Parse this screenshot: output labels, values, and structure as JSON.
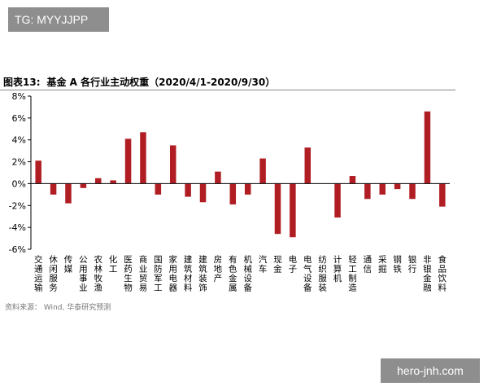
{
  "watermark_top": "TG: MYYJJPP",
  "watermark_bottom": "hero-jnh.com",
  "figure": {
    "number": "图表13:",
    "title": "基金 A 各行业主动权重（2020/4/1-2020/9/30）",
    "source": "资料来源： Wind, 华泰研究预测"
  },
  "chart_data": {
    "type": "bar",
    "title": "基金 A 各行业主动权重（2020/4/1-2020/9/30）",
    "xlabel": "",
    "ylabel": "",
    "ylim": [
      -6,
      8
    ],
    "yticks": [
      -6,
      -4,
      -2,
      0,
      2,
      4,
      6,
      8
    ],
    "ytick_labels": [
      "-6%",
      "-4%",
      "-2%",
      "0%",
      "2%",
      "4%",
      "6%",
      "8%"
    ],
    "grid": false,
    "bar_color": "#b01e24",
    "categories": [
      "交通运输",
      "休闲服务",
      "传媒",
      "公用事业",
      "农林牧渔",
      "化工",
      "医药生物",
      "商业贸易",
      "国防军工",
      "家用电器",
      "建筑材料",
      "建筑装饰",
      "房地产",
      "有色金属",
      "机械设备",
      "汽车",
      "现金",
      "电子",
      "电气设备",
      "纺织服装",
      "计算机",
      "轻工制造",
      "通信",
      "采掘",
      "钢铁",
      "银行",
      "非银金融",
      "食品饮料"
    ],
    "values": [
      2.1,
      -1.0,
      -1.8,
      -0.4,
      0.5,
      0.3,
      4.1,
      4.7,
      -1.0,
      3.5,
      -1.2,
      -1.7,
      1.1,
      -1.9,
      -1.0,
      2.3,
      -4.6,
      -4.9,
      3.3,
      0.0,
      -3.1,
      0.7,
      -1.4,
      -1.0,
      -0.5,
      -1.4,
      6.6,
      -2.1
    ]
  }
}
